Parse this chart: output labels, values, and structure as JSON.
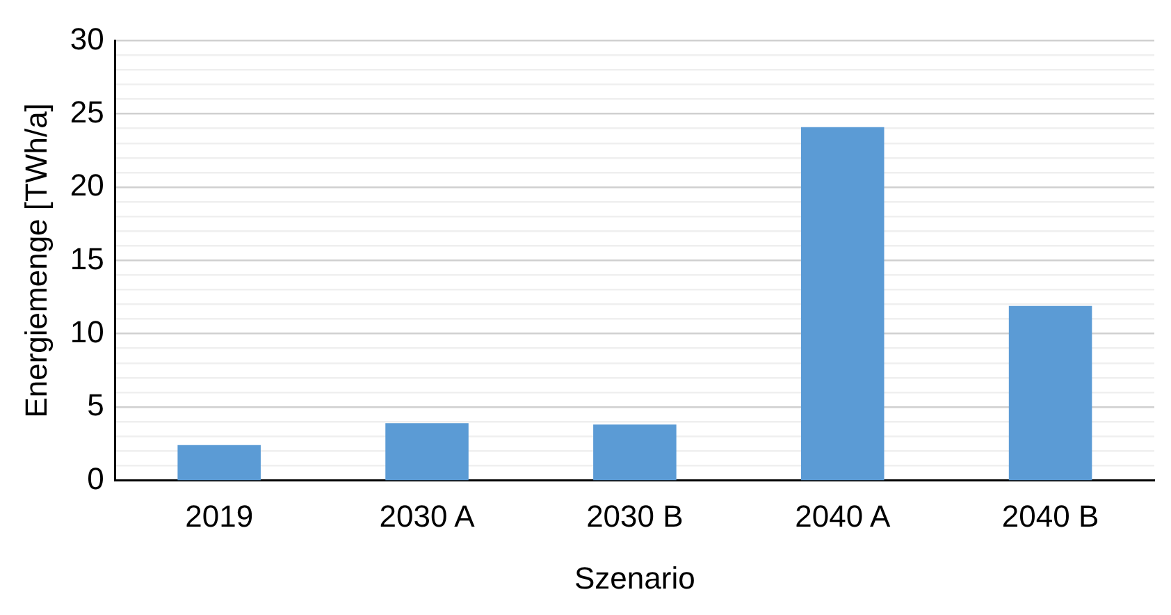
{
  "chart_data": {
    "type": "bar",
    "xlabel": "Szenario",
    "ylabel": "Energiemenge [TWh/a]",
    "categories": [
      "2019",
      "2030 A",
      "2030 B",
      "2040 A",
      "2040 B"
    ],
    "values": [
      2.4,
      3.9,
      3.8,
      24.1,
      11.9
    ],
    "color": "#5b9bd5",
    "ylim": [
      0,
      30
    ],
    "yticks": [
      0,
      {
        "value": 1,
        "label": null
      },
      {
        "value": 2,
        "label": null
      },
      {
        "value": 3,
        "label": null
      },
      {
        "value": 4,
        "label": null
      },
      5,
      {
        "value": 6,
        "label": null
      },
      {
        "value": 7,
        "label": null
      },
      {
        "value": 8,
        "label": null
      },
      {
        "value": 9,
        "label": null
      },
      10,
      {
        "value": 11,
        "label": null
      },
      {
        "value": 12,
        "label": null
      },
      {
        "value": 13,
        "label": null
      },
      {
        "value": 14,
        "label": null
      },
      15,
      {
        "value": 16,
        "label": null
      },
      {
        "value": 17,
        "label": null
      },
      {
        "value": 18,
        "label": null
      },
      {
        "value": 19,
        "label": null
      },
      20,
      {
        "value": 21,
        "label": null
      },
      {
        "value": 22,
        "label": null
      },
      {
        "value": 23,
        "label": null
      },
      {
        "value": 24,
        "label": null
      },
      25,
      {
        "value": 26,
        "label": null
      },
      {
        "value": 27,
        "label": null
      },
      {
        "value": 28,
        "label": null
      },
      {
        "value": 29,
        "label": null
      },
      30
    ],
    "grid": "y",
    "legend": false
  }
}
